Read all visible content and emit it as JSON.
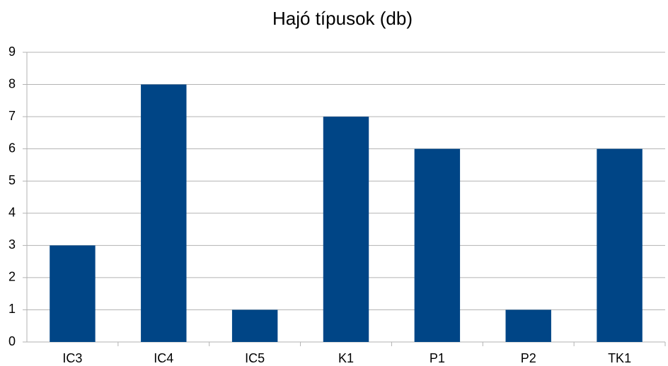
{
  "chart_data": {
    "type": "bar",
    "title": "Hajó típusok (db)",
    "categories": [
      "IC3",
      "IC4",
      "IC5",
      "K1",
      "P1",
      "P2",
      "TK1"
    ],
    "values": [
      3,
      8,
      1,
      7,
      6,
      1,
      6
    ],
    "color": "#004586",
    "ylim": [
      0,
      9
    ],
    "yticks": [
      0,
      1,
      2,
      3,
      4,
      5,
      6,
      7,
      8,
      9
    ],
    "grid": true
  }
}
